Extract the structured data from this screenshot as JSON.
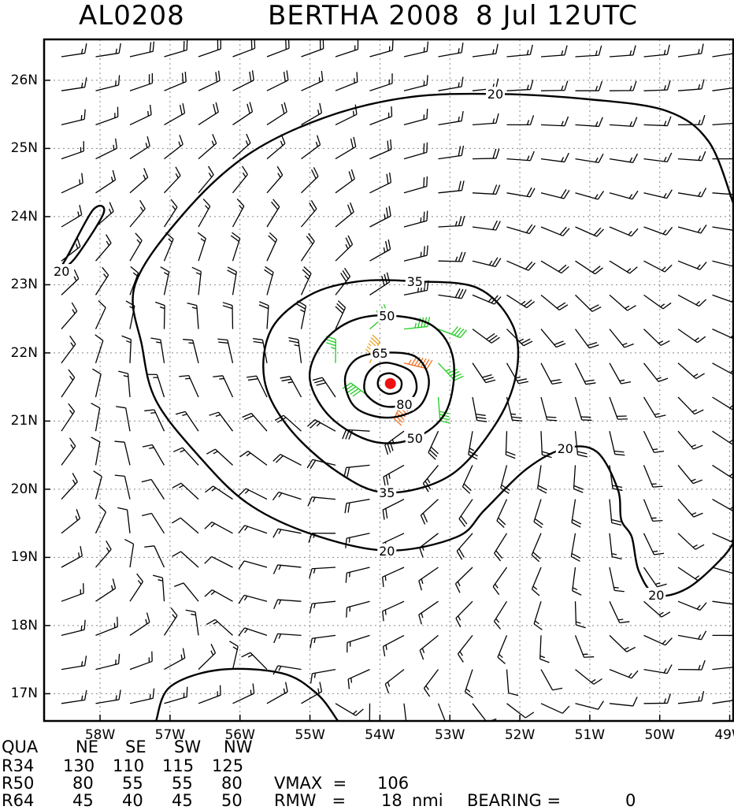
{
  "header": {
    "storm_id": "AL0208",
    "storm_name": "BERTHA 2008",
    "valid_time": "8 Jul 12UTC"
  },
  "map": {
    "lon_range": [
      -58.8,
      -48.95
    ],
    "lat_range": [
      16.6,
      26.6
    ],
    "lat_labels": [
      {
        "value": 26,
        "text": "26N"
      },
      {
        "value": 25,
        "text": "25N"
      },
      {
        "value": 24,
        "text": "24N"
      },
      {
        "value": 23,
        "text": "23N"
      },
      {
        "value": 22,
        "text": "22N"
      },
      {
        "value": 21,
        "text": "21N"
      },
      {
        "value": 20,
        "text": "20N"
      },
      {
        "value": 19,
        "text": "19N"
      },
      {
        "value": 18,
        "text": "18N"
      },
      {
        "value": 17,
        "text": "17N"
      }
    ],
    "lon_labels": [
      {
        "value": -58,
        "text": "58W"
      },
      {
        "value": -57,
        "text": "57W"
      },
      {
        "value": -56,
        "text": "56W"
      },
      {
        "value": -55,
        "text": "55W"
      },
      {
        "value": -54,
        "text": "54W"
      },
      {
        "value": -53,
        "text": "53W"
      },
      {
        "value": -52,
        "text": "52W"
      },
      {
        "value": -51,
        "text": "51W"
      },
      {
        "value": -50,
        "text": "50W"
      },
      {
        "value": -49,
        "text": "49W"
      }
    ],
    "storm_center": {
      "lon": -53.85,
      "lat": 21.55
    },
    "contour_labels": [
      {
        "text": "20",
        "lon": -52.35,
        "lat": 25.8
      },
      {
        "text": "20",
        "lon": -58.55,
        "lat": 23.2
      },
      {
        "text": "20",
        "lon": -51.35,
        "lat": 20.6
      },
      {
        "text": "20",
        "lon": -53.9,
        "lat": 19.1
      },
      {
        "text": "20",
        "lon": -50.05,
        "lat": 18.45
      },
      {
        "text": "35",
        "lon": -53.5,
        "lat": 23.05
      },
      {
        "text": "35",
        "lon": -53.9,
        "lat": 19.95
      },
      {
        "text": "50",
        "lon": -53.9,
        "lat": 22.55
      },
      {
        "text": "50",
        "lon": -53.5,
        "lat": 20.75
      },
      {
        "text": "65",
        "lon": -54.0,
        "lat": 22.0
      },
      {
        "text": "80",
        "lon": -53.65,
        "lat": 21.25
      }
    ],
    "colors": {
      "below_34kt": "#000000",
      "34_to_49kt": "#22cc22",
      "50_to_63kt": "#e8a020",
      "64_to_79kt": "#f07020",
      "above_80kt": "#ee1111",
      "center": "#ee1111",
      "grid": "#888888"
    }
  },
  "table": {
    "header": [
      "QUA",
      "NE",
      "SE",
      "SW",
      "NW"
    ],
    "rows": [
      {
        "label": "R34",
        "values": [
          "130",
          "110",
          "115",
          "125"
        ]
      },
      {
        "label": "R50",
        "values": [
          "80",
          "55",
          "55",
          "80"
        ]
      },
      {
        "label": "R64",
        "values": [
          "45",
          "40",
          "45",
          "50"
        ]
      }
    ],
    "vmax": {
      "label": "VMAX  =",
      "value": "106"
    },
    "rmw": {
      "label": "RMW   =",
      "value": "18",
      "unit": "nmi",
      "bearing_label": "BEARING =",
      "bearing_value": "0"
    }
  }
}
